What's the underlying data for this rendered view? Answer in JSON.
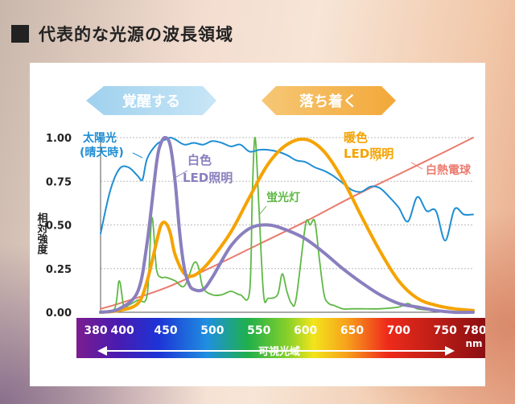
{
  "heading": "代表的な光源の波長領域",
  "chart_data": {
    "type": "line",
    "ylabel": "相対強度",
    "unit": "nm",
    "xlim": [
      380,
      780
    ],
    "ylim": [
      0,
      1
    ],
    "grid": true,
    "yticks": [
      "0.00",
      "0.25",
      "0.50",
      "0.75",
      "1.00"
    ],
    "ytick_values": [
      0,
      0.25,
      0.5,
      0.75,
      1.0
    ],
    "xticks": [
      "380",
      "400",
      "450",
      "500",
      "550",
      "600",
      "650",
      "700",
      "750",
      "780"
    ],
    "xtick_values": [
      380,
      400,
      450,
      500,
      550,
      600,
      650,
      700,
      750,
      780
    ],
    "spectrum_label": "可視光域",
    "banner_left": "覚醒する",
    "banner_right": "落ち着く",
    "series": [
      {
        "name": "太陽光",
        "name2": "(晴天時)",
        "color": "#1f8ed3",
        "x": [
          380,
          390,
          400,
          410,
          420,
          425,
          430,
          440,
          450,
          455,
          460,
          470,
          480,
          490,
          500,
          510,
          520,
          530,
          540,
          550,
          560,
          570,
          580,
          590,
          600,
          610,
          620,
          630,
          640,
          650,
          660,
          670,
          680,
          690,
          700,
          710,
          720,
          730,
          740,
          750,
          760,
          770,
          780
        ],
        "y": [
          0.45,
          0.69,
          0.82,
          0.83,
          0.78,
          0.76,
          0.88,
          0.96,
          0.99,
          1.0,
          0.99,
          0.96,
          0.97,
          0.96,
          0.98,
          0.97,
          0.95,
          0.96,
          0.92,
          0.93,
          0.93,
          0.92,
          0.9,
          0.87,
          0.86,
          0.83,
          0.81,
          0.78,
          0.74,
          0.7,
          0.69,
          0.72,
          0.71,
          0.66,
          0.6,
          0.52,
          0.66,
          0.58,
          0.58,
          0.41,
          0.59,
          0.56,
          0.56
        ]
      },
      {
        "name": "白色",
        "name2": "LED照明",
        "color": "#8a7fbe",
        "x": [
          380,
          400,
          420,
          430,
          440,
          445,
          450,
          455,
          460,
          465,
          470,
          475,
          480,
          490,
          500,
          520,
          540,
          560,
          580,
          600,
          620,
          640,
          660,
          680,
          700,
          720,
          740,
          760,
          780
        ],
        "y": [
          0.0,
          0.02,
          0.12,
          0.4,
          0.85,
          0.97,
          1.0,
          0.95,
          0.75,
          0.45,
          0.25,
          0.16,
          0.13,
          0.13,
          0.2,
          0.38,
          0.48,
          0.5,
          0.47,
          0.42,
          0.34,
          0.25,
          0.17,
          0.1,
          0.05,
          0.03,
          0.01,
          0.0,
          0.0
        ]
      },
      {
        "name": "暖色",
        "name2": "LED照明",
        "color": "#f5a300",
        "x": [
          380,
          400,
          420,
          430,
          440,
          445,
          450,
          455,
          460,
          470,
          480,
          490,
          500,
          520,
          540,
          560,
          580,
          600,
          620,
          640,
          660,
          680,
          700,
          720,
          740,
          760,
          780
        ],
        "y": [
          0.0,
          0.01,
          0.05,
          0.18,
          0.4,
          0.5,
          0.51,
          0.45,
          0.33,
          0.22,
          0.21,
          0.25,
          0.31,
          0.46,
          0.66,
          0.85,
          0.96,
          0.99,
          0.92,
          0.76,
          0.55,
          0.35,
          0.18,
          0.08,
          0.04,
          0.02,
          0.01
        ]
      },
      {
        "name": "蛍光灯",
        "color": "#5fb845",
        "x": [
          380,
          395,
          400,
          405,
          410,
          420,
          430,
          435,
          440,
          445,
          450,
          460,
          470,
          480,
          485,
          490,
          500,
          510,
          520,
          530,
          540,
          543,
          546,
          550,
          555,
          560,
          570,
          575,
          580,
          585,
          590,
          600,
          605,
          610,
          615,
          620,
          625,
          630,
          640,
          650,
          660,
          680,
          700,
          710,
          720,
          740,
          760,
          780
        ],
        "y": [
          0.0,
          0.02,
          0.18,
          0.03,
          0.04,
          0.07,
          0.1,
          0.54,
          0.25,
          0.2,
          0.2,
          0.18,
          0.15,
          0.28,
          0.26,
          0.14,
          0.1,
          0.1,
          0.12,
          0.1,
          0.12,
          0.7,
          1.0,
          0.6,
          0.1,
          0.08,
          0.1,
          0.22,
          0.12,
          0.05,
          0.08,
          0.5,
          0.5,
          0.52,
          0.3,
          0.1,
          0.05,
          0.04,
          0.02,
          0.02,
          0.02,
          0.02,
          0.03,
          0.05,
          0.02,
          0.01,
          0.0,
          0.0
        ]
      },
      {
        "name": "白熱電球",
        "color": "#ec7a6e",
        "x": [
          380,
          400,
          450,
          500,
          550,
          600,
          650,
          700,
          750,
          780
        ],
        "y": [
          0.02,
          0.05,
          0.14,
          0.26,
          0.39,
          0.52,
          0.66,
          0.79,
          0.92,
          1.0
        ]
      }
    ]
  }
}
